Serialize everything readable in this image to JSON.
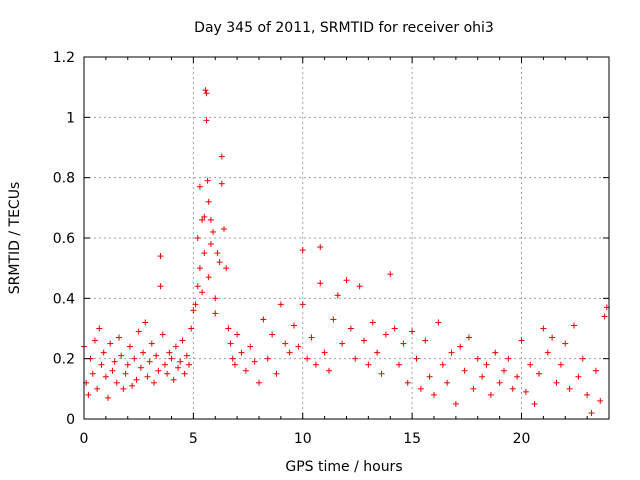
{
  "chart_data": {
    "type": "scatter",
    "title": "Day 345 of 2011, SRMTID for receiver ohi3",
    "xlabel": "GPS time / hours",
    "ylabel": "SRMTID / TECUs",
    "xlim": [
      0,
      24
    ],
    "ylim": [
      0,
      1.2
    ],
    "xticks": [
      0,
      5,
      10,
      15,
      20
    ],
    "xtick_labels": [
      "0",
      "5",
      "10",
      "15",
      "20"
    ],
    "yticks": [
      0,
      0.2,
      0.4,
      0.6,
      0.8,
      1.0,
      1.2
    ],
    "ytick_labels": [
      "0",
      "0.2",
      "0.4",
      "0.6",
      "0.8",
      "1",
      "1.2"
    ],
    "grid": true,
    "marker": "+",
    "color": "#ee0000",
    "series": [
      {
        "name": "SRMTID",
        "x": [
          0.0,
          0.1,
          0.2,
          0.3,
          0.4,
          0.5,
          0.6,
          0.7,
          0.8,
          0.9,
          1.0,
          1.1,
          1.2,
          1.3,
          1.4,
          1.5,
          1.6,
          1.7,
          1.8,
          1.9,
          2.0,
          2.1,
          2.2,
          2.3,
          2.4,
          2.5,
          2.6,
          2.7,
          2.8,
          2.9,
          3.0,
          3.1,
          3.2,
          3.3,
          3.4,
          3.5,
          3.5,
          3.6,
          3.7,
          3.8,
          3.9,
          4.0,
          4.1,
          4.2,
          4.3,
          4.4,
          4.5,
          4.6,
          4.7,
          4.8,
          4.9,
          5.0,
          5.1,
          5.2,
          5.2,
          5.3,
          5.3,
          5.4,
          5.4,
          5.5,
          5.5,
          5.55,
          5.6,
          5.6,
          5.65,
          5.7,
          5.7,
          5.8,
          5.8,
          5.9,
          6.0,
          6.0,
          6.1,
          6.2,
          6.3,
          6.3,
          6.4,
          6.5,
          6.6,
          6.7,
          6.8,
          6.9,
          7.0,
          7.2,
          7.4,
          7.6,
          7.8,
          8.0,
          8.2,
          8.4,
          8.6,
          8.8,
          9.0,
          9.2,
          9.4,
          9.6,
          9.8,
          10.0,
          10.0,
          10.2,
          10.4,
          10.6,
          10.8,
          10.8,
          11.0,
          11.2,
          11.4,
          11.6,
          11.8,
          12.0,
          12.2,
          12.4,
          12.6,
          12.8,
          13.0,
          13.2,
          13.4,
          13.6,
          13.8,
          14.0,
          14.2,
          14.4,
          14.6,
          14.8,
          15.0,
          15.2,
          15.4,
          15.6,
          15.8,
          16.0,
          16.2,
          16.4,
          16.6,
          16.8,
          17.0,
          17.2,
          17.4,
          17.6,
          17.8,
          18.0,
          18.2,
          18.4,
          18.6,
          18.8,
          19.0,
          19.2,
          19.4,
          19.6,
          19.8,
          20.0,
          20.2,
          20.4,
          20.6,
          20.8,
          21.0,
          21.2,
          21.4,
          21.6,
          21.8,
          22.0,
          22.2,
          22.4,
          22.6,
          22.8,
          23.0,
          23.2,
          23.4,
          23.6,
          23.8,
          23.9
        ],
        "y": [
          0.24,
          0.12,
          0.08,
          0.2,
          0.15,
          0.26,
          0.1,
          0.3,
          0.18,
          0.22,
          0.14,
          0.07,
          0.25,
          0.16,
          0.19,
          0.12,
          0.27,
          0.21,
          0.1,
          0.15,
          0.18,
          0.24,
          0.11,
          0.2,
          0.13,
          0.29,
          0.17,
          0.22,
          0.32,
          0.14,
          0.19,
          0.25,
          0.12,
          0.21,
          0.16,
          0.54,
          0.44,
          0.28,
          0.18,
          0.15,
          0.22,
          0.2,
          0.13,
          0.24,
          0.17,
          0.19,
          0.26,
          0.15,
          0.21,
          0.18,
          0.3,
          0.36,
          0.38,
          0.44,
          0.6,
          0.5,
          0.77,
          0.66,
          0.42,
          0.55,
          0.67,
          1.09,
          1.08,
          0.99,
          0.79,
          0.72,
          0.47,
          0.66,
          0.58,
          0.62,
          0.4,
          0.35,
          0.55,
          0.52,
          0.87,
          0.78,
          0.63,
          0.5,
          0.3,
          0.25,
          0.2,
          0.18,
          0.28,
          0.22,
          0.16,
          0.24,
          0.19,
          0.12,
          0.33,
          0.2,
          0.28,
          0.15,
          0.38,
          0.25,
          0.22,
          0.31,
          0.24,
          0.56,
          0.38,
          0.2,
          0.27,
          0.18,
          0.57,
          0.45,
          0.22,
          0.16,
          0.33,
          0.41,
          0.25,
          0.46,
          0.3,
          0.2,
          0.44,
          0.26,
          0.18,
          0.32,
          0.22,
          0.15,
          0.28,
          0.48,
          0.3,
          0.18,
          0.25,
          0.12,
          0.29,
          0.2,
          0.1,
          0.26,
          0.14,
          0.08,
          0.32,
          0.18,
          0.12,
          0.22,
          0.05,
          0.24,
          0.16,
          0.27,
          0.1,
          0.2,
          0.14,
          0.18,
          0.08,
          0.22,
          0.12,
          0.16,
          0.2,
          0.1,
          0.14,
          0.26,
          0.09,
          0.18,
          0.05,
          0.15,
          0.3,
          0.22,
          0.27,
          0.12,
          0.18,
          0.25,
          0.1,
          0.31,
          0.14,
          0.2,
          0.08,
          0.02,
          0.16,
          0.06,
          0.34,
          0.37
        ]
      }
    ]
  }
}
